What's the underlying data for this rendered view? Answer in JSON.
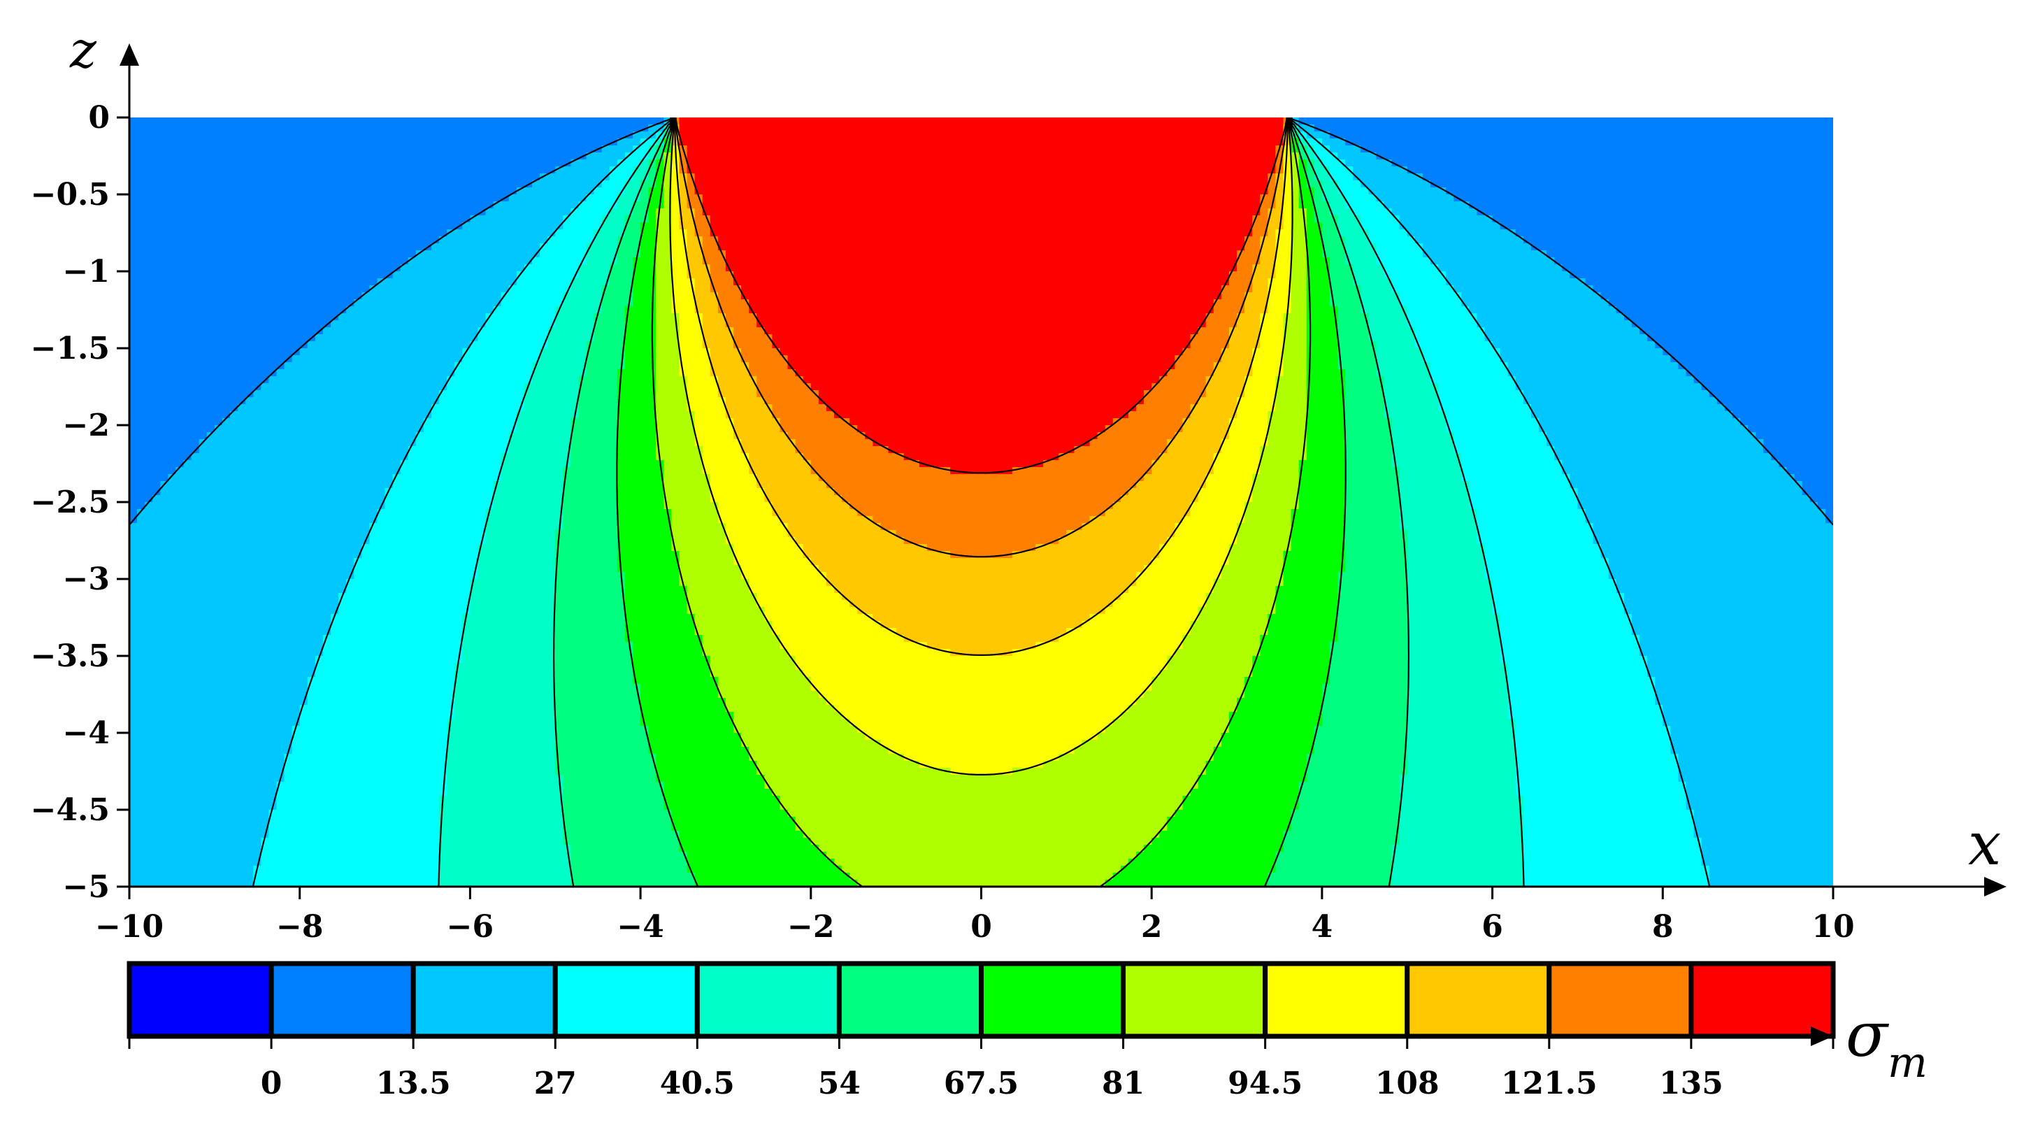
{
  "chart_data": {
    "type": "contour",
    "xlabel": "x",
    "ylabel": "z",
    "colorbar_label_main": "σ",
    "colorbar_label_sub": "m",
    "xlim": [
      -10,
      10
    ],
    "ylim": [
      -5,
      0
    ],
    "x_ticks": [
      -10,
      -8,
      -6,
      -4,
      -2,
      0,
      2,
      4,
      6,
      8,
      10
    ],
    "x_tick_labels": [
      "−10",
      "−8",
      "−6",
      "−4",
      "−2",
      "0",
      "2",
      "4",
      "6",
      "8",
      "10"
    ],
    "z_ticks": [
      0,
      -0.5,
      -1,
      -1.5,
      -2,
      -2.5,
      -3,
      -3.5,
      -4,
      -4.5,
      -5
    ],
    "z_tick_labels": [
      "0",
      "−0.5",
      "−1",
      "−1.5",
      "−2",
      "−2.5",
      "−3",
      "−3.5",
      "−4",
      "−4.5",
      "−5"
    ],
    "levels": [
      0,
      13.5,
      27,
      40.5,
      54,
      67.5,
      81,
      94.5,
      108,
      121.5,
      135
    ],
    "level_labels": [
      "0",
      "13.5",
      "27",
      "40.5",
      "54",
      "67.5",
      "81",
      "94.5",
      "108",
      "121.5",
      "135"
    ],
    "colors": [
      "#0000ff",
      "#0080ff",
      "#00c8ff",
      "#00ffff",
      "#00ffc8",
      "#00ff80",
      "#00ff00",
      "#b0ff00",
      "#ffff00",
      "#ffc800",
      "#ff8000",
      "#ff0000"
    ],
    "load_strip": [
      -3.6,
      3.6
    ]
  }
}
